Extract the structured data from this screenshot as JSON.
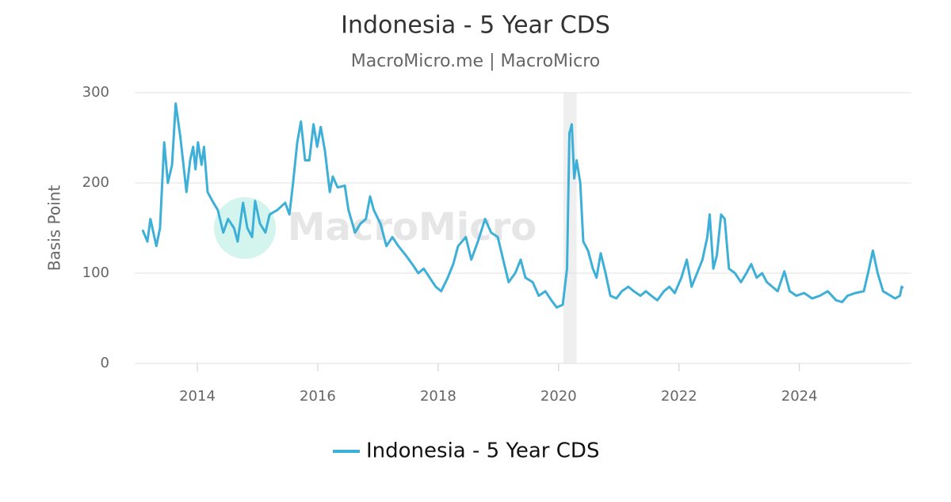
{
  "chart_data": {
    "type": "line",
    "title": "Indonesia - 5 Year CDS",
    "subtitle": "MacroMicro.me | MacroMicro",
    "watermark": "MacroMicro",
    "y_label": "Basis Point",
    "highlight_x": [
      2020.08,
      2020.3
    ],
    "x": [
      2013.09,
      2013.17,
      2013.22,
      2013.32,
      2013.38,
      2013.45,
      2013.51,
      2013.58,
      2013.64,
      2013.72,
      2013.82,
      2013.88,
      2013.93,
      2013.97,
      2014.01,
      2014.07,
      2014.11,
      2014.17,
      2014.25,
      2014.34,
      2014.43,
      2014.51,
      2014.61,
      2014.67,
      2014.76,
      2014.83,
      2014.91,
      2014.96,
      2015.04,
      2015.13,
      2015.2,
      2015.33,
      2015.46,
      2015.53,
      2015.59,
      2015.66,
      2015.72,
      2015.79,
      2015.86,
      2015.93,
      2015.99,
      2016.05,
      2016.12,
      2016.2,
      2016.25,
      2016.33,
      2016.45,
      2016.51,
      2016.62,
      2016.71,
      2016.8,
      2016.87,
      2016.93,
      2017.04,
      2017.14,
      2017.24,
      2017.34,
      2017.46,
      2017.57,
      2017.67,
      2017.76,
      2017.86,
      2017.96,
      2018.05,
      2018.16,
      2018.25,
      2018.33,
      2018.46,
      2018.55,
      2018.66,
      2018.78,
      2018.88,
      2018.99,
      2019.08,
      2019.17,
      2019.28,
      2019.37,
      2019.45,
      2019.57,
      2019.67,
      2019.78,
      2019.88,
      2019.97,
      2020.07,
      2020.14,
      2020.18,
      2020.22,
      2020.26,
      2020.3,
      2020.36,
      2020.41,
      2020.49,
      2020.57,
      2020.63,
      2020.7,
      2020.78,
      2020.86,
      2020.96,
      2021.05,
      2021.16,
      2021.25,
      2021.36,
      2021.45,
      2021.54,
      2021.64,
      2021.75,
      2021.84,
      2021.93,
      2022.04,
      2022.13,
      2022.21,
      2022.3,
      2022.39,
      2022.47,
      2022.51,
      2022.57,
      2022.63,
      2022.7,
      2022.76,
      2022.83,
      2022.93,
      2023.03,
      2023.12,
      2023.2,
      2023.29,
      2023.38,
      2023.46,
      2023.55,
      2023.64,
      2023.75,
      2023.84,
      2023.95,
      2024.08,
      2024.21,
      2024.34,
      2024.47,
      2024.61,
      2024.71,
      2024.8,
      2024.93,
      2025.07,
      2025.14,
      2025.22,
      2025.3,
      2025.39,
      2025.49,
      2025.59,
      2025.67,
      2025.7,
      2025.72
    ],
    "series": [
      {
        "name": "Indonesia - 5 Year CDS",
        "color": "#3eb0d8",
        "values": [
          148,
          135,
          160,
          130,
          150,
          245,
          200,
          220,
          288,
          250,
          190,
          225,
          240,
          215,
          245,
          220,
          240,
          190,
          180,
          170,
          145,
          160,
          150,
          135,
          178,
          150,
          140,
          180,
          155,
          145,
          165,
          170,
          178,
          165,
          200,
          245,
          268,
          225,
          225,
          265,
          240,
          262,
          235,
          190,
          207,
          195,
          197,
          170,
          145,
          155,
          160,
          185,
          170,
          155,
          130,
          140,
          130,
          120,
          110,
          100,
          105,
          95,
          85,
          80,
          95,
          110,
          130,
          140,
          115,
          135,
          160,
          145,
          140,
          115,
          90,
          100,
          115,
          95,
          90,
          75,
          80,
          70,
          62,
          65,
          105,
          255,
          265,
          205,
          225,
          200,
          135,
          125,
          105,
          95,
          122,
          100,
          75,
          72,
          80,
          85,
          80,
          75,
          80,
          75,
          70,
          80,
          85,
          78,
          95,
          115,
          85,
          100,
          115,
          140,
          165,
          105,
          120,
          165,
          160,
          105,
          100,
          90,
          100,
          110,
          95,
          100,
          90,
          85,
          80,
          102,
          80,
          75,
          78,
          72,
          75,
          80,
          70,
          68,
          75,
          78,
          80,
          100,
          125,
          100,
          80,
          76,
          72,
          75,
          85,
          83
        ]
      }
    ],
    "xlim": [
      2012.96,
      2025.86
    ],
    "xticks": [
      2014,
      2016,
      2018,
      2020,
      2022,
      2024
    ],
    "ylim": [
      0,
      300
    ],
    "yticks": [
      0,
      100,
      200,
      300
    ],
    "grid": true,
    "legend": "bottom"
  }
}
